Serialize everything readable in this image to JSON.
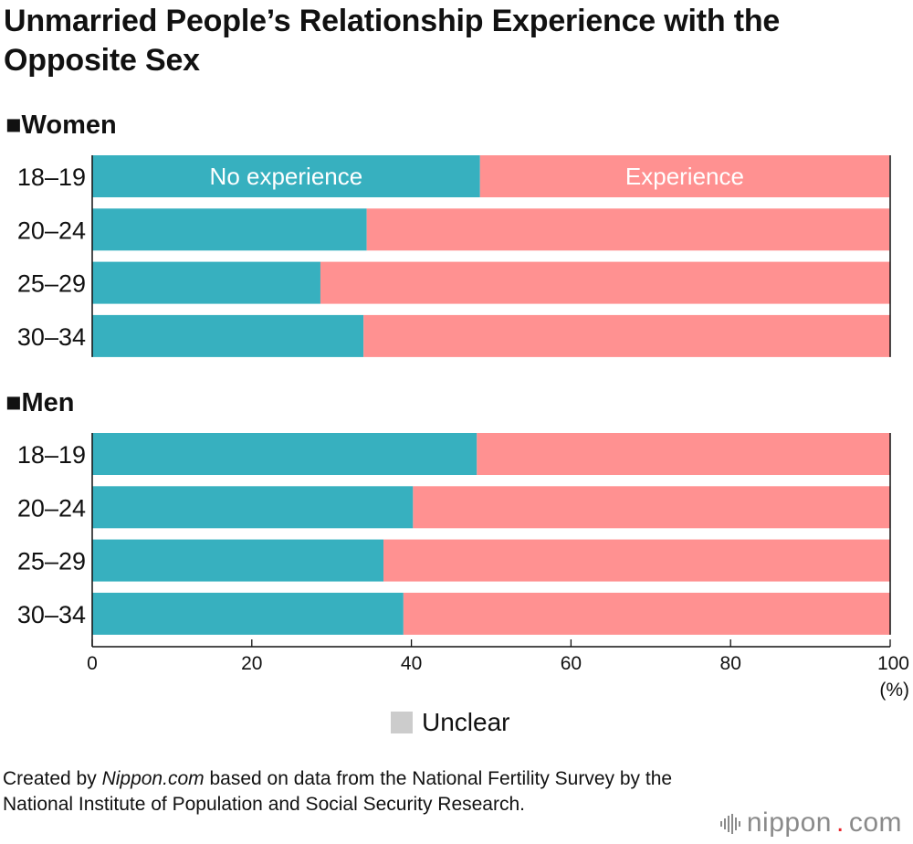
{
  "title": "Unmarried People’s Relationship Experience with the Opposite Sex",
  "chart_data": {
    "type": "bar",
    "orientation": "horizontal",
    "stacked": true,
    "xlim": [
      0,
      100
    ],
    "xunit": "(%)",
    "xticks": [
      0,
      20,
      40,
      60,
      80,
      100
    ],
    "legend": {
      "unclear_label": "Unclear"
    },
    "series_labels": {
      "no_experience": "No experience",
      "experience": "Experience"
    },
    "colors": {
      "no_experience": "#37b0bf",
      "experience": "#ff9191",
      "unclear": "#cccccc",
      "text": "#111111",
      "inner_label": "#ffffff"
    },
    "groups": [
      {
        "label": "■Women",
        "categories": [
          "18–19",
          "20–24",
          "25–29",
          "30–34"
        ],
        "no_experience": [
          48.6,
          34.4,
          28.6,
          34.0
        ],
        "experience": [
          51.3,
          65.5,
          71.4,
          66.0
        ]
      },
      {
        "label": "■Men",
        "categories": [
          "18–19",
          "20–24",
          "25–29",
          "30–34"
        ],
        "no_experience": [
          48.2,
          40.2,
          36.5,
          39.0
        ],
        "experience": [
          51.8,
          59.8,
          63.5,
          61.0
        ]
      }
    ]
  },
  "source": {
    "prefix": "Created by ",
    "site": "Nippon.com",
    "suffix": " based on data from the National Fertility Survey by the National Institute of Population and Social Security Research."
  },
  "logo": {
    "name": "nippon",
    "dot": ".",
    "domain": "com"
  }
}
